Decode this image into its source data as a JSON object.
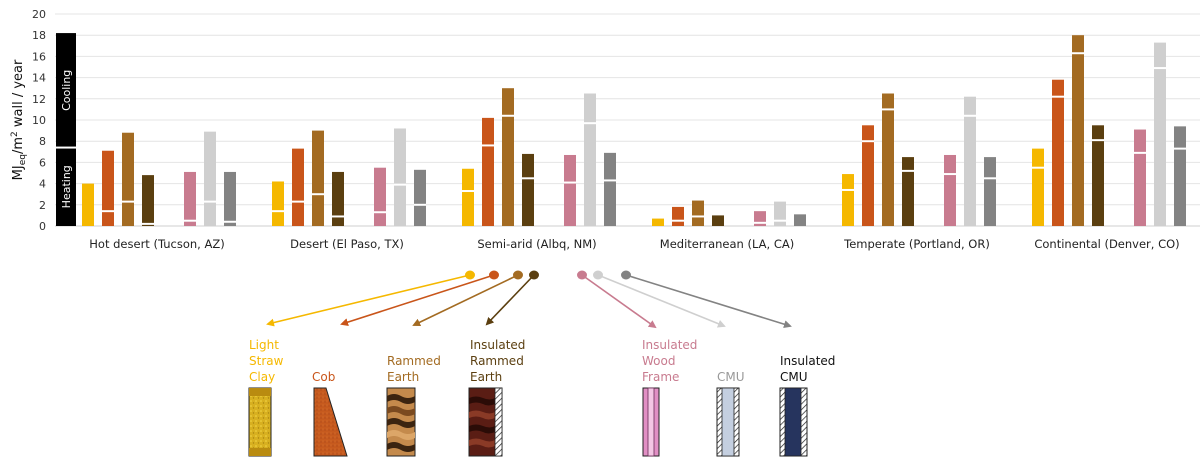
{
  "chart_data": {
    "type": "bar",
    "stacked_segments": [
      "Heating",
      "Cooling"
    ],
    "ylabel": "MJeq/m² wall / year",
    "ylabel_parts": {
      "base": "MJ",
      "sub": "eq",
      "rest": "/m",
      "sup": "2",
      "tail": " wall / year"
    },
    "ylim": [
      0,
      20
    ],
    "yticks": [
      "0",
      "2",
      "4",
      "6",
      "8",
      "10",
      "12",
      "14",
      "16",
      "18",
      "20"
    ],
    "grid": true,
    "side_labels": {
      "heating": "Heating",
      "cooling": "Cooling"
    },
    "categories": [
      "Hot desert (Tucson, AZ)",
      "Desert (El Paso, TX)",
      "Semi-arid (Albq, NM)",
      "Mediterranean (LA, CA)",
      "Temperate (Portland, OR)",
      "Continental (Denver, CO)"
    ],
    "series": [
      {
        "name": "Light Straw Clay",
        "color": "#f5b800",
        "total": [
          4.0,
          4.2,
          5.4,
          0.7,
          4.9,
          7.3
        ],
        "heating": [
          0.0,
          1.4,
          3.3,
          0.0,
          3.4,
          5.5
        ]
      },
      {
        "name": "Cob",
        "color": "#c9551a",
        "total": [
          7.1,
          7.3,
          10.2,
          1.8,
          9.5,
          13.8
        ],
        "heating": [
          1.4,
          2.3,
          7.6,
          0.5,
          8.0,
          12.2
        ]
      },
      {
        "name": "Rammed Earth",
        "color": "#a36b22",
        "total": [
          8.8,
          9.0,
          13.0,
          2.4,
          12.5,
          18.0
        ],
        "heating": [
          2.3,
          3.0,
          10.4,
          0.9,
          11.0,
          16.3
        ]
      },
      {
        "name": "Insulated Rammed Earth",
        "color": "#5b3f10",
        "total": [
          4.8,
          5.1,
          6.8,
          1.0,
          6.5,
          9.5
        ],
        "heating": [
          0.2,
          0.9,
          4.5,
          0.0,
          5.2,
          8.1
        ]
      },
      {
        "name": "Insulated Wood Frame",
        "color": "#c87b8f",
        "total": [
          5.1,
          5.5,
          6.7,
          1.4,
          6.7,
          9.1
        ],
        "heating": [
          0.5,
          1.3,
          4.1,
          0.3,
          4.9,
          6.9
        ]
      },
      {
        "name": "CMU",
        "color": "#cfcfcf",
        "total": [
          8.9,
          9.2,
          12.5,
          2.3,
          12.2,
          17.3
        ],
        "heating": [
          2.3,
          3.9,
          9.7,
          0.5,
          10.4,
          14.9
        ]
      },
      {
        "name": "Insulated CMU",
        "color": "#838383",
        "total": [
          5.1,
          5.3,
          6.9,
          1.1,
          6.5,
          9.4
        ],
        "heating": [
          0.4,
          2.0,
          4.3,
          0.0,
          4.5,
          7.3
        ]
      }
    ],
    "legend": [
      {
        "lines": [
          "Light",
          "Straw",
          "Clay"
        ],
        "color": "#f5b800",
        "dot_color": "#f5b800",
        "swatch": "straw"
      },
      {
        "lines": [
          "Cob"
        ],
        "color": "#c9551a",
        "dot_color": "#c9551a",
        "swatch": "cob"
      },
      {
        "lines": [
          "Rammed",
          "Earth"
        ],
        "color": "#a36b22",
        "dot_color": "#a36b22",
        "swatch": "rammed"
      },
      {
        "lines": [
          "Insulated",
          "Rammed",
          "Earth"
        ],
        "color": "#5b3f10",
        "dot_color": "#5b3f10",
        "swatch": "insulated-rammed"
      },
      {
        "lines": [
          "Insulated",
          "Wood",
          "Frame"
        ],
        "color": "#c87b8f",
        "dot_color": "#c87b8f",
        "swatch": "wood"
      },
      {
        "lines": [
          "CMU"
        ],
        "color": "#999999",
        "dot_color": "#cfcfcf",
        "swatch": "cmu"
      },
      {
        "lines": [
          "Insulated",
          "CMU"
        ],
        "color": "#111111",
        "dot_color": "#838383",
        "swatch": "insulated-cmu"
      }
    ]
  }
}
